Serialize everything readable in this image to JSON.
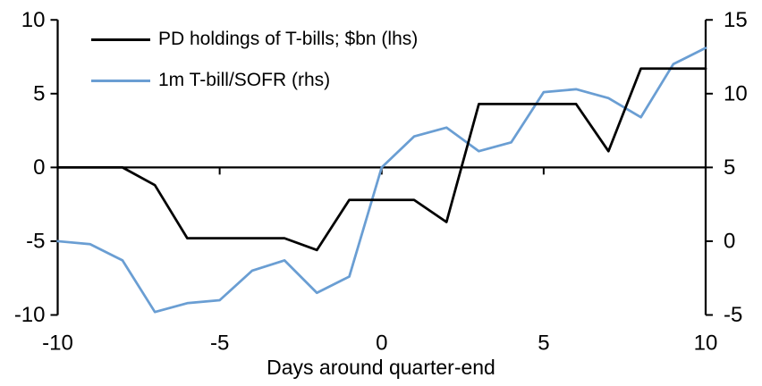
{
  "chart_data": {
    "type": "line",
    "x": [
      -10,
      -9,
      -8,
      -7,
      -6,
      -5,
      -4,
      -3,
      -2,
      -1,
      0,
      1,
      2,
      3,
      4,
      5,
      6,
      7,
      8,
      9,
      10
    ],
    "series": [
      {
        "name": "PD holdings of T-bills; $bn (lhs)",
        "axis": "left",
        "color": "#000000",
        "values": [
          0,
          0,
          0,
          -1.2,
          -4.8,
          -4.8,
          -4.8,
          -4.8,
          -5.6,
          -2.2,
          -2.2,
          -2.2,
          -3.7,
          4.3,
          4.3,
          4.3,
          4.3,
          1.1,
          6.7,
          6.7,
          6.7
        ]
      },
      {
        "name": "1m T-bill/SOFR (rhs)",
        "axis": "right",
        "color": "#6A9ED3",
        "values": [
          0,
          -0.2,
          -1.3,
          -4.8,
          -4.2,
          -4.0,
          -2.0,
          -1.3,
          -3.5,
          -2.4,
          5.0,
          7.1,
          7.7,
          6.1,
          6.7,
          10.1,
          10.3,
          9.7,
          8.4,
          12.0,
          13.1
        ]
      }
    ],
    "title": "",
    "xlabel": "Days around quarter-end",
    "ylabel": "",
    "left_axis": {
      "min": -10,
      "max": 10,
      "ticks": [
        10,
        5,
        0,
        -5,
        -10
      ]
    },
    "right_axis": {
      "min": -5,
      "max": 15,
      "ticks": [
        15,
        10,
        5,
        0,
        -5
      ]
    },
    "x_ticks": [
      -10,
      -5,
      0,
      5,
      10
    ],
    "x_axis_cross": 0,
    "grid": false,
    "legend_position": "top-left"
  },
  "legend": {
    "item1": "PD holdings of T-bills; $bn (lhs)",
    "item2": "1m T-bill/SOFR (rhs)"
  },
  "colors": {
    "background": "#ffffff",
    "axis": "#000000",
    "series1": "#000000",
    "series2": "#6A9ED3"
  },
  "xlabel": "Days around quarter-end"
}
